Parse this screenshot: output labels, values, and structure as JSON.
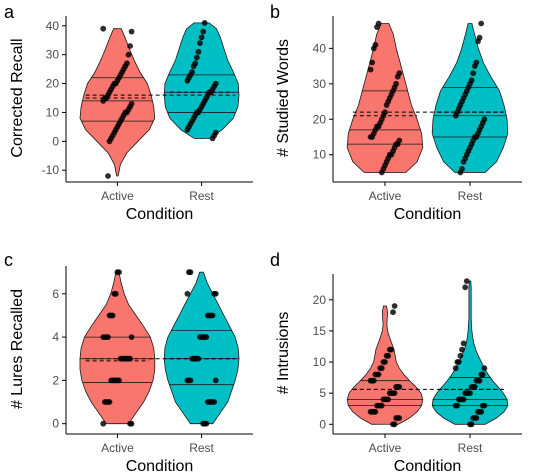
{
  "colors": {
    "Active": "#f8766d",
    "Rest": "#00bfc4"
  },
  "chart_data": [
    {
      "panel_label": "a",
      "type": "violin",
      "ylabel": "Corrected Recall",
      "xlabel": "Condition",
      "categories": [
        "Active",
        "Rest"
      ],
      "ylim": [
        -12,
        42
      ],
      "yticks": [
        -10,
        0,
        10,
        20,
        30,
        40
      ],
      "ytick_labels": [
        "-10",
        "0",
        "10",
        "20",
        "30",
        "40"
      ],
      "grand_mean": 16,
      "groups": [
        {
          "name": "Active",
          "mean": 15,
          "quantiles": [
            7,
            14,
            22
          ],
          "min": -12,
          "max": 39,
          "density": [
            [
              -12,
              0.02
            ],
            [
              -8,
              0.08
            ],
            [
              -4,
              0.25
            ],
            [
              0,
              0.55
            ],
            [
              4,
              0.85
            ],
            [
              8,
              1.0
            ],
            [
              12,
              0.97
            ],
            [
              16,
              0.9
            ],
            [
              20,
              0.8
            ],
            [
              24,
              0.6
            ],
            [
              28,
              0.45
            ],
            [
              32,
              0.32
            ],
            [
              36,
              0.2
            ],
            [
              39,
              0.1
            ]
          ],
          "points": [
            39,
            38,
            33,
            30,
            27,
            26,
            25,
            24,
            23,
            22,
            21,
            20,
            20,
            19,
            18,
            17,
            16,
            15,
            15,
            14,
            13,
            12,
            11,
            10,
            10,
            9,
            8,
            7,
            6,
            5,
            4,
            3,
            2,
            1,
            0,
            -12
          ]
        },
        {
          "name": "Rest",
          "mean": 17,
          "quantiles": [
            10,
            17,
            23
          ],
          "min": 1,
          "max": 41,
          "density": [
            [
              1,
              0.2
            ],
            [
              4,
              0.55
            ],
            [
              8,
              0.85
            ],
            [
              12,
              0.97
            ],
            [
              16,
              1.0
            ],
            [
              20,
              0.98
            ],
            [
              24,
              0.85
            ],
            [
              28,
              0.7
            ],
            [
              32,
              0.6
            ],
            [
              36,
              0.5
            ],
            [
              39,
              0.4
            ],
            [
              41,
              0.2
            ]
          ],
          "points": [
            41,
            38,
            36,
            34,
            31,
            29,
            27,
            26,
            24,
            23,
            22,
            21,
            20,
            19,
            18,
            17,
            17,
            16,
            15,
            14,
            13,
            12,
            11,
            10,
            10,
            9,
            8,
            7,
            6,
            5,
            4,
            3,
            2,
            1
          ]
        }
      ]
    },
    {
      "panel_label": "b",
      "type": "violin",
      "ylabel": "# Studied Words",
      "xlabel": "Condition",
      "categories": [
        "Active",
        "Rest"
      ],
      "ylim": [
        4,
        48
      ],
      "yticks": [
        10,
        20,
        30,
        40
      ],
      "ytick_labels": [
        "10",
        "20",
        "30",
        "40"
      ],
      "grand_mean": 22,
      "groups": [
        {
          "name": "Active",
          "mean": 21,
          "quantiles": [
            13,
            17,
            28
          ],
          "min": 5,
          "max": 47,
          "density": [
            [
              5,
              0.55
            ],
            [
              8,
              0.85
            ],
            [
              12,
              1.0
            ],
            [
              16,
              0.97
            ],
            [
              20,
              0.85
            ],
            [
              24,
              0.7
            ],
            [
              28,
              0.6
            ],
            [
              32,
              0.5
            ],
            [
              36,
              0.4
            ],
            [
              40,
              0.3
            ],
            [
              44,
              0.22
            ],
            [
              47,
              0.1
            ]
          ],
          "points": [
            47,
            46,
            41,
            40,
            36,
            34,
            33,
            32,
            30,
            29,
            28,
            27,
            26,
            25,
            24,
            22,
            21,
            20,
            19,
            18,
            18,
            17,
            16,
            15,
            15,
            14,
            13,
            13,
            12,
            11,
            10,
            10,
            9,
            8,
            7,
            6,
            5
          ]
        },
        {
          "name": "Rest",
          "mean": 22,
          "quantiles": [
            15,
            21,
            29
          ],
          "min": 5,
          "max": 47,
          "density": [
            [
              5,
              0.4
            ],
            [
              8,
              0.7
            ],
            [
              12,
              0.88
            ],
            [
              16,
              1.0
            ],
            [
              20,
              0.98
            ],
            [
              24,
              0.9
            ],
            [
              28,
              0.78
            ],
            [
              32,
              0.55
            ],
            [
              36,
              0.35
            ],
            [
              40,
              0.22
            ],
            [
              44,
              0.12
            ],
            [
              47,
              0.05
            ]
          ],
          "points": [
            47,
            43,
            42,
            36,
            35,
            33,
            31,
            30,
            29,
            28,
            27,
            26,
            25,
            24,
            23,
            22,
            21,
            20,
            19,
            18,
            17,
            16,
            15,
            15,
            14,
            13,
            12,
            11,
            10,
            9,
            8,
            6,
            5
          ]
        }
      ]
    },
    {
      "panel_label": "c",
      "type": "violin",
      "ylabel": "# Lures Recalled",
      "xlabel": "Condition",
      "categories": [
        "Active",
        "Rest"
      ],
      "ylim": [
        -0.2,
        7.1
      ],
      "yticks": [
        0,
        2,
        4,
        6
      ],
      "ytick_labels": [
        "0",
        "2",
        "4",
        "6"
      ],
      "grand_mean": 3,
      "groups": [
        {
          "name": "Active",
          "mean": 2.9,
          "quantiles": [
            1.9,
            3.0,
            4.0
          ],
          "min": 0,
          "max": 7,
          "density": [
            [
              0,
              0.3
            ],
            [
              0.5,
              0.5
            ],
            [
              1,
              0.7
            ],
            [
              1.5,
              0.85
            ],
            [
              2,
              0.95
            ],
            [
              2.5,
              1.0
            ],
            [
              3,
              1.0
            ],
            [
              3.5,
              0.97
            ],
            [
              4,
              0.88
            ],
            [
              4.5,
              0.7
            ],
            [
              5,
              0.5
            ],
            [
              5.5,
              0.3
            ],
            [
              6,
              0.18
            ],
            [
              6.5,
              0.1
            ],
            [
              7,
              0.04
            ]
          ],
          "points": [
            7,
            7,
            6,
            6,
            5,
            5,
            5,
            4,
            4,
            4,
            4,
            4,
            3,
            3,
            3,
            3,
            3,
            3,
            3,
            2,
            2,
            2,
            2,
            2,
            2,
            1,
            1,
            1,
            1,
            0,
            0,
            0
          ]
        },
        {
          "name": "Rest",
          "mean": 3.0,
          "quantiles": [
            1.8,
            3.0,
            4.3
          ],
          "min": 0,
          "max": 7,
          "density": [
            [
              0,
              0.3
            ],
            [
              0.5,
              0.5
            ],
            [
              1,
              0.7
            ],
            [
              1.5,
              0.8
            ],
            [
              2,
              0.9
            ],
            [
              2.5,
              0.97
            ],
            [
              3,
              1.0
            ],
            [
              3.5,
              0.98
            ],
            [
              4,
              0.9
            ],
            [
              4.5,
              0.75
            ],
            [
              5,
              0.6
            ],
            [
              5.5,
              0.45
            ],
            [
              6,
              0.3
            ],
            [
              6.5,
              0.15
            ],
            [
              7,
              0.05
            ]
          ],
          "points": [
            7,
            7,
            6,
            6,
            6,
            5,
            5,
            5,
            5,
            4,
            4,
            4,
            4,
            4,
            3,
            3,
            3,
            3,
            3,
            2,
            2,
            2,
            2,
            1,
            1,
            1,
            1,
            1,
            0,
            0,
            0
          ]
        }
      ]
    },
    {
      "panel_label": "d",
      "type": "violin",
      "ylabel": "# Intrusions",
      "xlabel": "Condition",
      "categories": [
        "Active",
        "Rest"
      ],
      "ylim": [
        -0.6,
        23.5
      ],
      "yticks": [
        0,
        5,
        10,
        15,
        20
      ],
      "ytick_labels": [
        "0",
        "5",
        "10",
        "15",
        "20"
      ],
      "grand_mean": 5.6,
      "groups": [
        {
          "name": "Active",
          "mean": 5.6,
          "quantiles": [
            3,
            4,
            7
          ],
          "min": 0,
          "max": 19,
          "density": [
            [
              0,
              0.35
            ],
            [
              1,
              0.65
            ],
            [
              2,
              0.85
            ],
            [
              3,
              0.97
            ],
            [
              4,
              1.0
            ],
            [
              5,
              0.95
            ],
            [
              6,
              0.82
            ],
            [
              7,
              0.65
            ],
            [
              8,
              0.5
            ],
            [
              9,
              0.38
            ],
            [
              10,
              0.3
            ],
            [
              11,
              0.27
            ],
            [
              12,
              0.24
            ],
            [
              13,
              0.18
            ],
            [
              14,
              0.12
            ],
            [
              15,
              0.07
            ],
            [
              16,
              0.05
            ],
            [
              17,
              0.06
            ],
            [
              18,
              0.07
            ],
            [
              19,
              0.04
            ]
          ],
          "points": [
            19,
            18,
            12,
            12,
            11,
            11,
            10,
            10,
            9,
            9,
            8,
            8,
            8,
            7,
            7,
            7,
            6,
            6,
            6,
            5,
            5,
            5,
            5,
            4,
            4,
            4,
            4,
            3,
            3,
            3,
            3,
            2,
            2,
            2,
            2,
            1,
            1,
            1,
            0,
            0
          ]
        },
        {
          "name": "Rest",
          "mean": 5.6,
          "quantiles": [
            3,
            4,
            7.5
          ],
          "min": 0,
          "max": 23,
          "density": [
            [
              0,
              0.4
            ],
            [
              1,
              0.7
            ],
            [
              2,
              0.9
            ],
            [
              3,
              1.0
            ],
            [
              4,
              0.98
            ],
            [
              5,
              0.88
            ],
            [
              6,
              0.74
            ],
            [
              7,
              0.6
            ],
            [
              8,
              0.48
            ],
            [
              9,
              0.38
            ],
            [
              10,
              0.3
            ],
            [
              11,
              0.22
            ],
            [
              12,
              0.15
            ],
            [
              13,
              0.1
            ],
            [
              14,
              0.07
            ],
            [
              15,
              0.05
            ],
            [
              16,
              0.04
            ],
            [
              17,
              0.03
            ],
            [
              18,
              0.03
            ],
            [
              19,
              0.03
            ],
            [
              20,
              0.03
            ],
            [
              21,
              0.03
            ],
            [
              22,
              0.03
            ],
            [
              23,
              0.02
            ]
          ],
          "points": [
            23,
            22,
            13,
            12,
            11,
            10,
            10,
            9,
            9,
            8,
            8,
            7,
            7,
            7,
            6,
            6,
            6,
            5,
            5,
            5,
            5,
            4,
            4,
            4,
            4,
            3,
            3,
            3,
            3,
            2,
            2,
            2,
            1,
            1,
            1,
            0,
            0
          ]
        }
      ]
    }
  ]
}
